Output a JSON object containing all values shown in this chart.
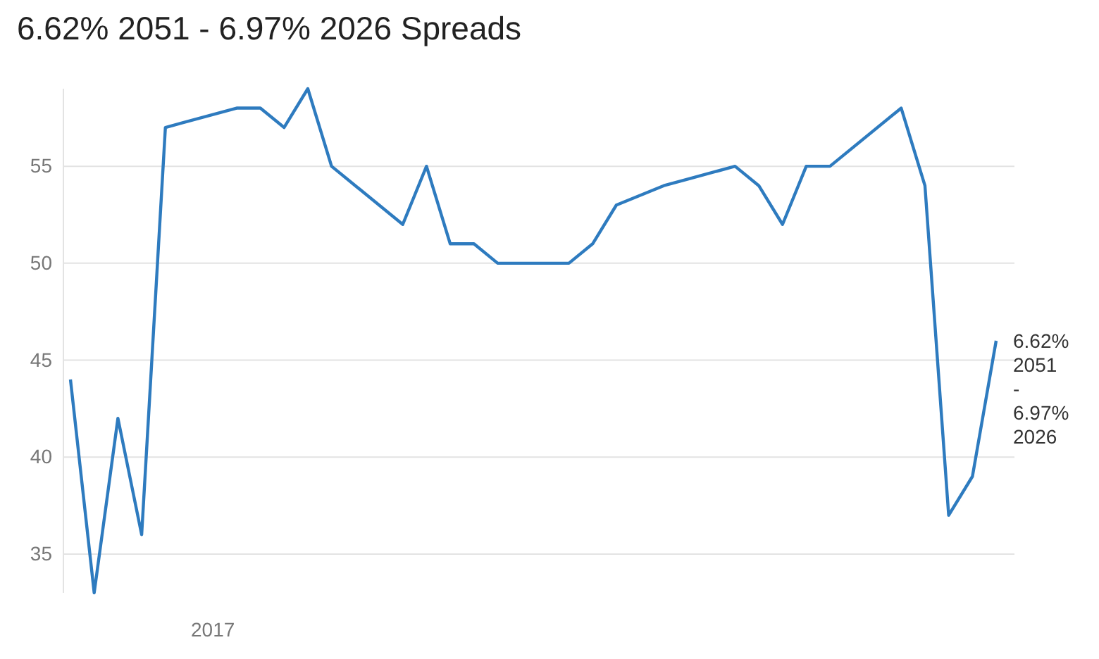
{
  "chart_data": {
    "type": "line",
    "title": "6.62% 2051 - 6.97% 2026 Spreads",
    "categories": [
      null,
      null,
      null,
      null,
      null,
      null,
      "2017",
      null,
      null,
      null,
      null,
      null,
      null,
      null,
      null,
      null,
      null,
      null,
      null,
      null,
      null,
      null,
      null,
      null,
      null,
      null,
      null,
      null,
      null,
      null,
      null,
      null,
      null,
      null,
      null,
      null,
      null,
      null,
      null,
      null
    ],
    "series": [
      {
        "name": "6.62% 2051 - 6.97% 2026",
        "color": "#2e7bbf",
        "values": [
          44,
          33,
          42,
          36,
          57,
          null,
          null,
          58,
          58,
          57,
          59,
          55,
          null,
          null,
          52,
          55,
          51,
          51,
          50,
          null,
          null,
          50,
          51,
          53,
          null,
          54,
          null,
          null,
          55,
          54,
          52,
          55,
          55,
          null,
          null,
          58,
          54,
          37,
          39,
          46
        ]
      }
    ],
    "ylim": [
      33,
      59
    ],
    "yticks": [
      35,
      40,
      45,
      50,
      55
    ],
    "grid": "y",
    "legend": false,
    "marker": "none",
    "line_style": "solid"
  }
}
